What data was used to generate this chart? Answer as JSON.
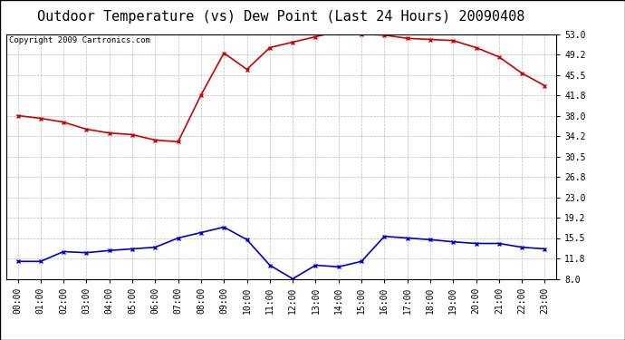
{
  "title": "Outdoor Temperature (vs) Dew Point (Last 24 Hours) 20090408",
  "copyright": "Copyright 2009 Cartronics.com",
  "x_labels": [
    "00:00",
    "01:00",
    "02:00",
    "03:00",
    "04:00",
    "05:00",
    "06:00",
    "07:00",
    "08:00",
    "09:00",
    "10:00",
    "11:00",
    "12:00",
    "13:00",
    "14:00",
    "15:00",
    "16:00",
    "17:00",
    "18:00",
    "19:00",
    "20:00",
    "21:00",
    "22:00",
    "23:00"
  ],
  "temp_data": [
    38.0,
    37.5,
    36.8,
    35.5,
    34.8,
    34.5,
    33.5,
    33.2,
    41.8,
    49.5,
    46.5,
    50.5,
    51.5,
    52.5,
    53.5,
    53.0,
    52.8,
    52.2,
    52.0,
    51.8,
    50.5,
    48.8,
    45.8,
    43.5
  ],
  "dew_data": [
    11.2,
    11.2,
    13.0,
    12.8,
    13.2,
    13.5,
    13.8,
    15.5,
    16.5,
    17.5,
    15.2,
    10.5,
    8.0,
    10.5,
    10.2,
    11.2,
    15.8,
    15.5,
    15.2,
    14.8,
    14.5,
    14.5,
    13.8,
    13.5
  ],
  "temp_color": "#cc0000",
  "dew_color": "#0000cc",
  "bg_color": "#ffffff",
  "grid_color": "#aaaaaa",
  "y_ticks": [
    8.0,
    11.8,
    15.5,
    19.2,
    23.0,
    26.8,
    30.5,
    34.2,
    38.0,
    41.8,
    45.5,
    49.2,
    53.0
  ],
  "y_min": 8.0,
  "y_max": 53.0,
  "title_fontsize": 11,
  "copyright_fontsize": 6.5,
  "tick_fontsize": 7,
  "marker": "x",
  "marker_size": 3.5,
  "line_width": 1.2
}
